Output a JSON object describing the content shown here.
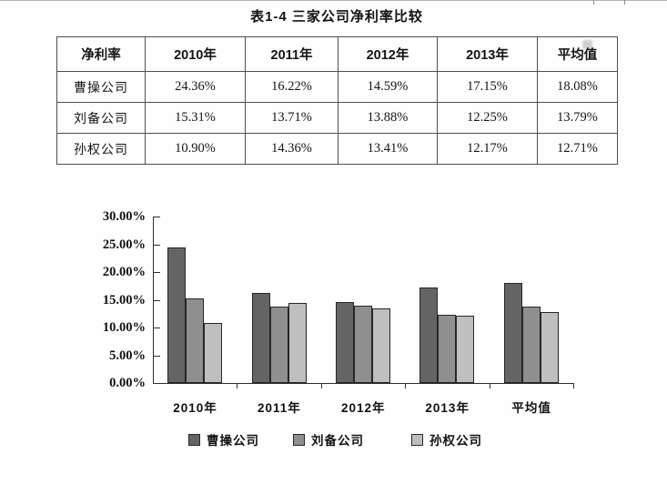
{
  "title": "表1-4 三家公司净利率比较",
  "table": {
    "columns": [
      "净利率",
      "2010年",
      "2011年",
      "2012年",
      "2013年",
      "平均值"
    ],
    "rows": [
      {
        "label": "曹操公司",
        "values": [
          "24.36%",
          "16.22%",
          "14.59%",
          "17.15%",
          "18.08%"
        ]
      },
      {
        "label": "刘备公司",
        "values": [
          "15.31%",
          "13.71%",
          "13.88%",
          "12.25%",
          "13.79%"
        ]
      },
      {
        "label": "孙权公司",
        "values": [
          "10.90%",
          "14.36%",
          "13.41%",
          "12.17%",
          "12.71%"
        ]
      }
    ]
  },
  "chart_data": {
    "type": "bar",
    "categories": [
      "2010年",
      "2011年",
      "2012年",
      "2013年",
      "平均值"
    ],
    "series": [
      {
        "name": "曹操公司",
        "color": "#646464",
        "values": [
          24.36,
          16.22,
          14.59,
          17.15,
          18.08
        ]
      },
      {
        "name": "刘备公司",
        "color": "#8f8f8f",
        "values": [
          15.31,
          13.71,
          13.88,
          12.25,
          13.79
        ]
      },
      {
        "name": "孙权公司",
        "color": "#bfbfbf",
        "values": [
          10.9,
          14.36,
          13.41,
          12.17,
          12.71
        ]
      }
    ],
    "title": "",
    "xlabel": "",
    "ylabel": "",
    "ylim": [
      0,
      30
    ],
    "ytick_step": 5,
    "ytick_labels": [
      "0.00%",
      "5.00%",
      "10.00%",
      "15.00%",
      "20.00%",
      "25.00%",
      "30.00%"
    ],
    "grid": false,
    "legend_position": "bottom"
  }
}
